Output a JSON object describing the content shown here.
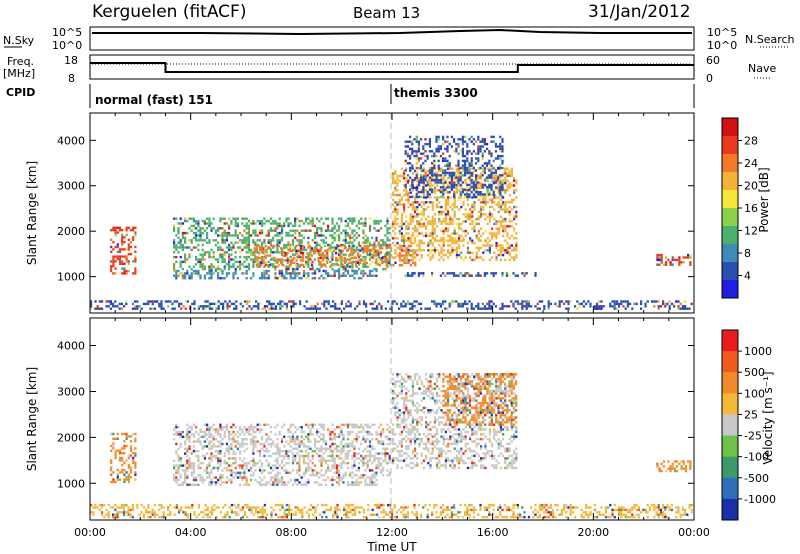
{
  "header": {
    "station": "Kerguelen (fitACF)",
    "beam": "Beam 13",
    "date": "31/Jan/2012"
  },
  "noise_panel": {
    "left_label": "N.Sky",
    "left_ticks": [
      "10^5",
      "10^0"
    ],
    "right_label": "N.Search",
    "right_ticks": [
      "10^5",
      "10^0"
    ]
  },
  "freq_panel": {
    "left_label_line1": "Freq.",
    "left_label_line2": "[MHz]",
    "left_ticks": [
      "18",
      "8"
    ],
    "right_label": "Nave",
    "right_ticks": [
      "60",
      "0"
    ],
    "freq_steps": [
      {
        "t0": 0,
        "t1": 3,
        "mhz": 15.5
      },
      {
        "t0": 3,
        "t1": 17,
        "mhz": 11.0
      },
      {
        "t0": 17,
        "t1": 24,
        "mhz": 14.5
      }
    ]
  },
  "cpid_panel": {
    "label": "CPID",
    "modes": [
      {
        "start_hour": 0,
        "name": "normal (fast) 151"
      },
      {
        "start_hour": 12,
        "name": "themis 3300"
      }
    ]
  },
  "chart_data": [
    {
      "type": "heatmap",
      "name": "power",
      "ylabel": "Slant Range [km]",
      "yticks": [
        "1000",
        "2000",
        "3000",
        "4000"
      ],
      "ylim": [
        200,
        4600
      ],
      "xlim": [
        0,
        24
      ],
      "colorbar_label": "Power [dB]",
      "colorbar_ticks": [
        "28",
        "24",
        "20",
        "16",
        "12",
        "8",
        "4"
      ],
      "colors": [
        "#1e1ee6",
        "#2a4fb0",
        "#3f8ab8",
        "#4caf6a",
        "#8ccf4a",
        "#f3e83a",
        "#f5b23a",
        "#f27a2a",
        "#e8381e",
        "#d40f0f"
      ],
      "bands": [
        {
          "t0": 0.8,
          "t1": 1.9,
          "r0": 1000,
          "r1": 2100,
          "dominant": "#e8381e"
        },
        {
          "t0": 3.3,
          "t1": 12.0,
          "r0": 1100,
          "r1": 2300,
          "dominant": "#4caf6a"
        },
        {
          "t0": 3.3,
          "t1": 11.5,
          "r0": 900,
          "r1": 1150,
          "dominant": "#3f8ab8"
        },
        {
          "t0": 6.5,
          "t1": 13.0,
          "r0": 1200,
          "r1": 1700,
          "dominant": "#f27a2a"
        },
        {
          "t0": 12.0,
          "t1": 17.0,
          "r0": 1300,
          "r1": 3400,
          "dominant": "#f5b23a"
        },
        {
          "t0": 12.5,
          "t1": 16.5,
          "r0": 2700,
          "r1": 4100,
          "dominant": "#2a4fb0"
        },
        {
          "t0": 12.5,
          "t1": 17.8,
          "r0": 950,
          "r1": 1100,
          "dominant": "#2a4fb0"
        },
        {
          "t0": 22.5,
          "t1": 23.9,
          "r0": 1200,
          "r1": 1500,
          "dominant": "#e8381e"
        },
        {
          "t0": 0.0,
          "t1": 24.0,
          "r0": 230,
          "r1": 480,
          "dominant": "#2a4fb0"
        }
      ]
    },
    {
      "type": "heatmap",
      "name": "velocity",
      "xlabel": "Time UT",
      "ylabel": "Slant Range [km]",
      "yticks": [
        "1000",
        "2000",
        "3000",
        "4000"
      ],
      "xticks": [
        "00:00",
        "04:00",
        "08:00",
        "12:00",
        "16:00",
        "20:00",
        "00:00"
      ],
      "ylim": [
        200,
        4600
      ],
      "xlim": [
        0,
        24
      ],
      "colorbar_label": "Velocity [m s⁻¹]",
      "colorbar_ticks": [
        "1000",
        "500",
        "100",
        "25",
        "-25",
        "-100",
        "-500",
        "-1000"
      ],
      "colors": [
        "#1a2fa8",
        "#2f6fb8",
        "#3c9a6a",
        "#6dc24a",
        "#c8c8c8",
        "#f3b83a",
        "#f08a2a",
        "#f05a1e",
        "#e81e1e"
      ],
      "bands": [
        {
          "t0": 0.8,
          "t1": 1.9,
          "r0": 1000,
          "r1": 2100,
          "dominant": "#f08a2a"
        },
        {
          "t0": 3.3,
          "t1": 12.0,
          "r0": 1100,
          "r1": 2300,
          "dominant": "#c8c8c8"
        },
        {
          "t0": 3.3,
          "t1": 11.5,
          "r0": 900,
          "r1": 1150,
          "dominant": "#c8c8c8"
        },
        {
          "t0": 12.0,
          "t1": 17.0,
          "r0": 1300,
          "r1": 3400,
          "dominant": "#c8c8c8"
        },
        {
          "t0": 14.0,
          "t1": 17.0,
          "r0": 2200,
          "r1": 3400,
          "dominant": "#f08a2a"
        },
        {
          "t0": 22.5,
          "t1": 23.9,
          "r0": 1200,
          "r1": 1500,
          "dominant": "#f08a2a"
        },
        {
          "t0": 0.0,
          "t1": 24.0,
          "r0": 230,
          "r1": 550,
          "dominant": "#f3b83a"
        }
      ]
    }
  ]
}
